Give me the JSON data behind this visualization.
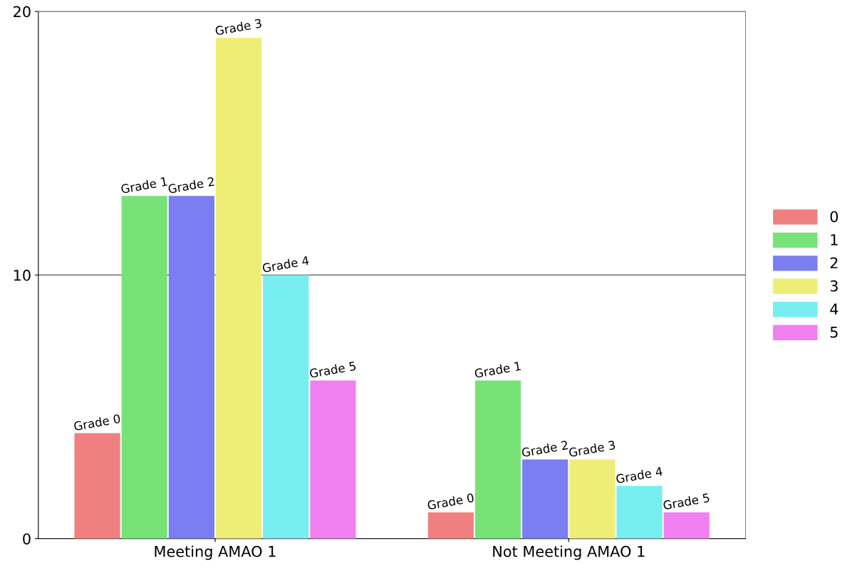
{
  "chart_data": {
    "type": "bar",
    "categories": [
      "Meeting AMAO 1",
      "Not Meeting AMAO 1"
    ],
    "series": [
      {
        "name": "0",
        "color": "#f08080",
        "values": [
          4,
          1
        ],
        "value_labels": [
          "Grade 0",
          "Grade 0"
        ]
      },
      {
        "name": "1",
        "color": "#77e377",
        "values": [
          13,
          6
        ],
        "value_labels": [
          "Grade 1",
          "Grade 1"
        ]
      },
      {
        "name": "2",
        "color": "#7a7ef0",
        "values": [
          13,
          3
        ],
        "value_labels": [
          "Grade 2",
          "Grade 2"
        ]
      },
      {
        "name": "3",
        "color": "#eeee77",
        "values": [
          19,
          3
        ],
        "value_labels": [
          "Grade 3",
          "Grade 3"
        ]
      },
      {
        "name": "4",
        "color": "#77eef0",
        "values": [
          10,
          2
        ],
        "value_labels": [
          "Grade 4",
          "Grade 4"
        ]
      },
      {
        "name": "5",
        "color": "#f080f0",
        "values": [
          6,
          1
        ],
        "value_labels": [
          "Grade 5",
          "Grade 5"
        ]
      }
    ],
    "ylim": [
      0,
      20
    ],
    "yticks": [
      0,
      10,
      20
    ],
    "grid": "y",
    "legend": "right"
  }
}
